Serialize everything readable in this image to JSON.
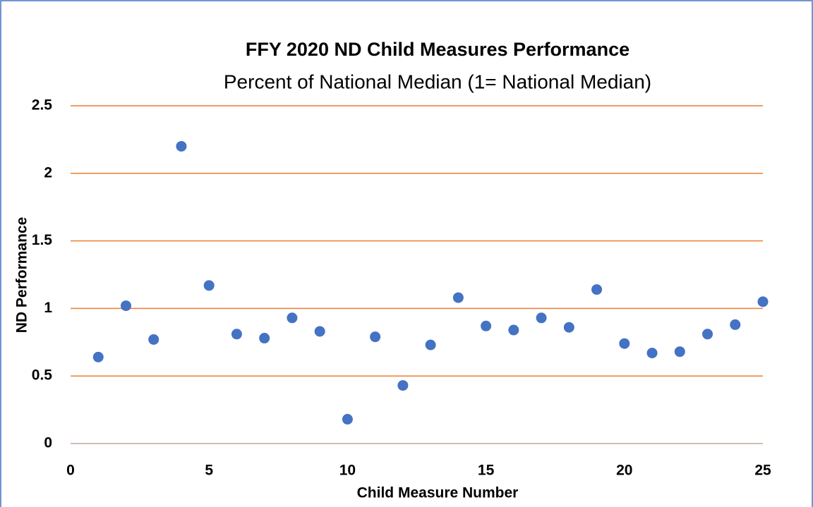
{
  "chart_data": {
    "type": "scatter",
    "title": "FFY 2020 ND Child Measures Performance",
    "subtitle": "Percent of National Median (1= National Median)",
    "x_label": "Child Measure Number",
    "y_label": "ND Performance",
    "series": [
      {
        "color": "#4472c4",
        "x": [
          1,
          2,
          3,
          4,
          5,
          6,
          7,
          8,
          9,
          10,
          11,
          12,
          13,
          14,
          15,
          16,
          17,
          18,
          19,
          20,
          21,
          22,
          23,
          24,
          25
        ],
        "values": [
          0.64,
          1.02,
          0.77,
          2.2,
          1.17,
          0.81,
          0.78,
          0.93,
          0.83,
          0.18,
          0.79,
          0.43,
          0.73,
          1.08,
          0.87,
          0.84,
          0.93,
          0.86,
          1.14,
          0.74,
          0.67,
          0.68,
          0.81,
          0.88,
          1.05
        ]
      }
    ],
    "xlim": [
      0,
      25
    ],
    "xticks": [
      0,
      5,
      10,
      15,
      20,
      25
    ],
    "ylim": [
      0,
      2.5
    ],
    "yticks": [
      0,
      0.5,
      1,
      1.5,
      2,
      2.5
    ],
    "grid": true,
    "grid_color": "#ed7d31"
  }
}
